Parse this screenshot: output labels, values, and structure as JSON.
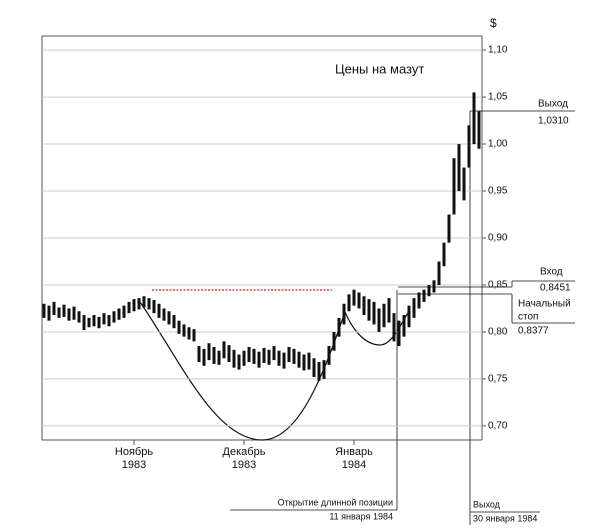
{
  "chart_data": {
    "type": "range",
    "title": "Цены  на мазут",
    "y_unit": "$",
    "categories": [
      null,
      null,
      null,
      null,
      null,
      null,
      null,
      null,
      null,
      null,
      null,
      null,
      null,
      null,
      null,
      null,
      null,
      null,
      "Ноябрь\n1983",
      null,
      null,
      null,
      null,
      null,
      null,
      null,
      null,
      null,
      null,
      null,
      null,
      null,
      null,
      null,
      null,
      null,
      null,
      null,
      null,
      null,
      "Декабрь\n1983",
      null,
      null,
      null,
      null,
      null,
      null,
      null,
      null,
      null,
      null,
      null,
      null,
      null,
      null,
      null,
      null,
      null,
      null,
      null,
      null,
      null,
      "Январь\n1984",
      null,
      null,
      null,
      null,
      null,
      null,
      null,
      null,
      null,
      null,
      null,
      null,
      null,
      null,
      null,
      null,
      null,
      null,
      null,
      null,
      null,
      null,
      null,
      null
    ],
    "highs": [
      0.83,
      0.828,
      0.832,
      0.826,
      0.829,
      0.825,
      0.827,
      0.822,
      0.818,
      0.815,
      0.818,
      0.816,
      0.82,
      0.818,
      0.822,
      0.825,
      0.828,
      0.832,
      0.835,
      0.836,
      0.838,
      0.836,
      0.834,
      0.83,
      0.825,
      0.822,
      0.818,
      0.812,
      0.808,
      0.805,
      0.803,
      0.785,
      0.782,
      0.788,
      0.784,
      0.78,
      0.79,
      0.786,
      0.781,
      0.776,
      0.78,
      0.784,
      0.782,
      0.779,
      0.783,
      0.781,
      0.785,
      0.78,
      0.778,
      0.784,
      0.782,
      0.779,
      0.776,
      0.778,
      0.772,
      0.768,
      0.77,
      0.785,
      0.8,
      0.815,
      0.83,
      0.84,
      0.845,
      0.842,
      0.838,
      0.835,
      0.832,
      0.825,
      0.83,
      0.836,
      0.82,
      0.812,
      0.818,
      0.828,
      0.836,
      0.842,
      0.845,
      0.85,
      0.855,
      0.875,
      0.895,
      0.925,
      0.985,
      1.0,
      0.975,
      1.02,
      1.055,
      1.035
    ],
    "lows": [
      0.815,
      0.812,
      0.818,
      0.815,
      0.816,
      0.812,
      0.813,
      0.81,
      0.802,
      0.805,
      0.806,
      0.804,
      0.808,
      0.806,
      0.81,
      0.813,
      0.815,
      0.82,
      0.822,
      0.824,
      0.826,
      0.824,
      0.82,
      0.815,
      0.812,
      0.808,
      0.804,
      0.798,
      0.795,
      0.792,
      0.79,
      0.768,
      0.764,
      0.77,
      0.766,
      0.765,
      0.772,
      0.768,
      0.762,
      0.76,
      0.764,
      0.768,
      0.766,
      0.762,
      0.767,
      0.765,
      0.77,
      0.764,
      0.761,
      0.768,
      0.766,
      0.762,
      0.759,
      0.76,
      0.752,
      0.748,
      0.75,
      0.765,
      0.78,
      0.795,
      0.808,
      0.822,
      0.828,
      0.825,
      0.818,
      0.812,
      0.808,
      0.8,
      0.805,
      0.81,
      0.79,
      0.785,
      0.795,
      0.805,
      0.815,
      0.825,
      0.832,
      0.838,
      0.842,
      0.85,
      0.87,
      0.895,
      0.925,
      0.95,
      0.94,
      0.975,
      1.0,
      0.995
    ],
    "color": "#111111",
    "ylim": [
      0.685,
      1.115
    ],
    "yticks": [
      {
        "value": 0.7,
        "label": "0,70"
      },
      {
        "value": 0.75,
        "label": "0,75"
      },
      {
        "value": 0.8,
        "label": "0,80"
      },
      {
        "value": 0.85,
        "label": "0,85"
      },
      {
        "value": 0.9,
        "label": "0,90"
      },
      {
        "value": 0.95,
        "label": "0,95"
      },
      {
        "value": 1.0,
        "label": "1,00"
      },
      {
        "value": 1.05,
        "label": "1,05"
      },
      {
        "value": 1.1,
        "label": "1,10"
      }
    ],
    "grid": true,
    "annotations": {
      "exit_label": "Выход",
      "exit_price": "1,0310",
      "entry_label": "Вход",
      "entry_price": "0,8451",
      "stop_label_1": "Начальный",
      "stop_label_2": "стоп",
      "stop_price": "0,8377",
      "open_label_1": "Открытие длинной позиции",
      "open_label_2": "11 января 1984",
      "close_label_1": "Выход",
      "close_label_2": "30 января 1984"
    }
  }
}
